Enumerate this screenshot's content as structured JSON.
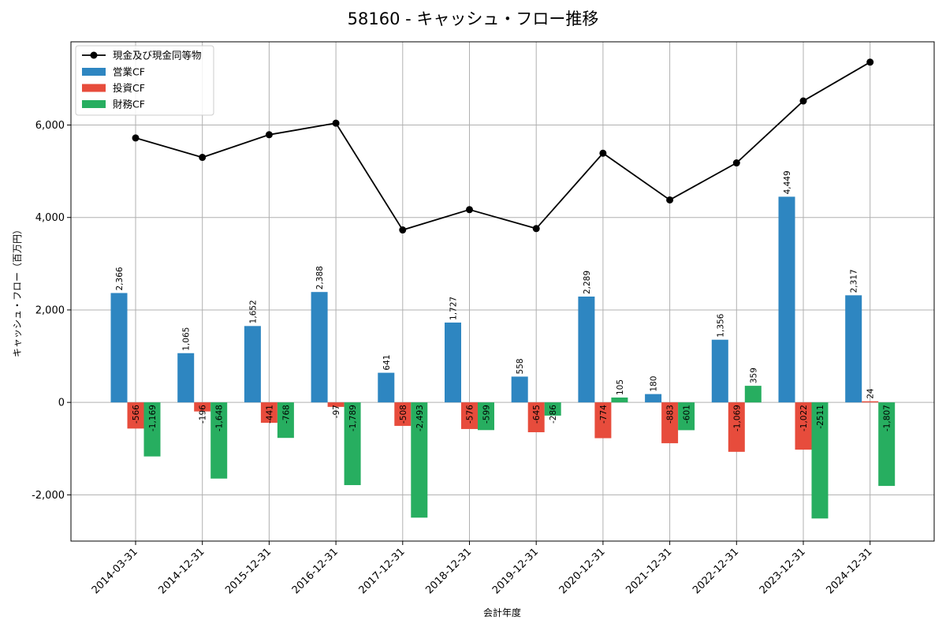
{
  "chart_data": {
    "type": "bar",
    "title": "58160 - キャッシュ・フロー推移",
    "xlabel": "会計年度",
    "ylabel": "キャッシュ・フロー（百万円）",
    "ylim": [
      -3000,
      7800
    ],
    "yticks": [
      -2000,
      0,
      2000,
      4000,
      6000
    ],
    "ytick_labels": [
      "-2,000",
      "0",
      "2,000",
      "4,000",
      "6,000"
    ],
    "grid": true,
    "legend_position": "top-left",
    "categories": [
      "2014-03-31",
      "2014-12-31",
      "2015-12-31",
      "2016-12-31",
      "2017-12-31",
      "2018-12-31",
      "2019-12-31",
      "2020-12-31",
      "2021-12-31",
      "2022-12-31",
      "2023-12-31",
      "2024-12-31"
    ],
    "series": [
      {
        "name": "営業CF",
        "type": "bar",
        "color": "#2e86c1",
        "values": [
          2366,
          1065,
          1652,
          2388,
          641,
          1727,
          558,
          2289,
          180,
          1356,
          4449,
          2317
        ],
        "labels": [
          "2,366",
          "1,065",
          "1,652",
          "2,388",
          "641",
          "1,727",
          "558",
          "2,289",
          "180",
          "1,356",
          "4,449",
          "2,317"
        ]
      },
      {
        "name": "投資CF",
        "type": "bar",
        "color": "#e74c3c",
        "values": [
          -566,
          -196,
          -441,
          -97,
          -508,
          -576,
          -645,
          -774,
          -883,
          -1069,
          -1022,
          24
        ],
        "labels": [
          "-566",
          "-196",
          "-441",
          "-97",
          "-508",
          "-576",
          "-645",
          "-774",
          "-883",
          "-1,069",
          "-1,022",
          "24"
        ]
      },
      {
        "name": "財務CF",
        "type": "bar",
        "color": "#27ae60",
        "values": [
          -1169,
          -1648,
          -768,
          -1789,
          -2493,
          -599,
          -286,
          105,
          -601,
          359,
          -2511,
          -1807
        ],
        "labels": [
          "-1,169",
          "-1,648",
          "-768",
          "-1,789",
          "-2,493",
          "-599",
          "-286",
          "105",
          "-601",
          "359",
          "-2511",
          "-1,807"
        ]
      },
      {
        "name": "現金及び現金同等物",
        "type": "line",
        "color": "#000000",
        "values": [
          5720,
          5300,
          5790,
          6040,
          3730,
          4170,
          3760,
          5390,
          4380,
          5180,
          6520,
          7360
        ]
      }
    ]
  }
}
